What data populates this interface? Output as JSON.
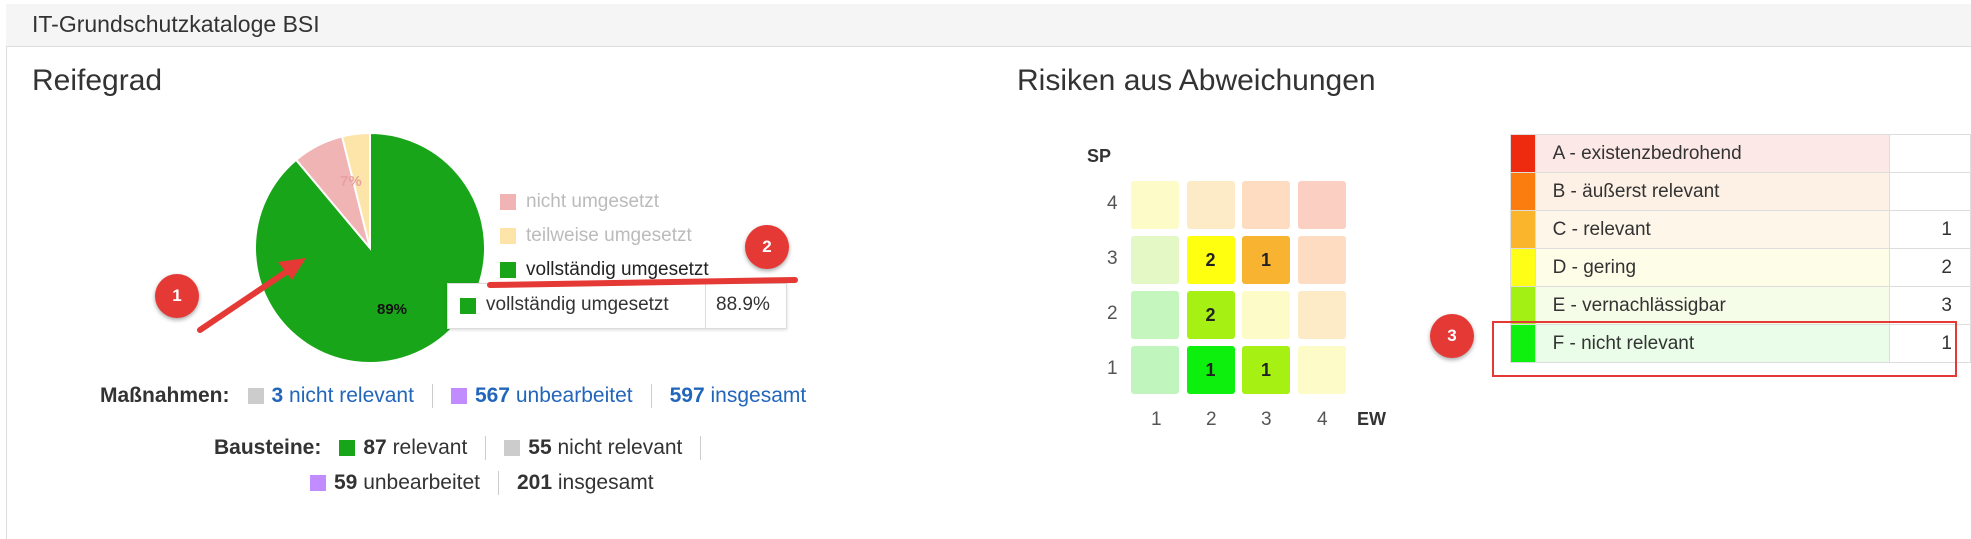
{
  "panel": {
    "title": "IT-Grundschutzkataloge BSI"
  },
  "reifegrad": {
    "title": "Reifegrad",
    "legend": [
      {
        "label": "nicht umgesetzt",
        "color": "#f0b4b4"
      },
      {
        "label": "teilweise umgesetzt",
        "color": "#fde4a8"
      },
      {
        "label": "vollständig umgesetzt",
        "color": "#19a519"
      }
    ],
    "tooltip": {
      "label": "vollständig umgesetzt",
      "value": "88.9%"
    },
    "slice_labels": {
      "nicht": "7%",
      "voll": "89%"
    },
    "massnahmen": {
      "label": "Maßnahmen:",
      "nicht_relevant": {
        "count": "3",
        "text": "nicht relevant"
      },
      "unbearbeitet": {
        "count": "567",
        "text": "unbearbeitet"
      },
      "insgesamt": {
        "count": "597",
        "text": "insgesamt"
      }
    },
    "bausteine": {
      "label": "Bausteine:",
      "relevant": {
        "count": "87",
        "text": "relevant"
      },
      "nicht_relevant": {
        "count": "55",
        "text": "nicht relevant"
      },
      "unbearbeitet": {
        "count": "59",
        "text": "unbearbeitet"
      },
      "insgesamt": {
        "count": "201",
        "text": "insgesamt"
      }
    }
  },
  "chart_data": {
    "type": "pie",
    "categories": [
      "nicht umgesetzt",
      "teilweise umgesetzt",
      "vollständig umgesetzt"
    ],
    "values": [
      7.2,
      3.9,
      88.9
    ],
    "colors": [
      "#f0b4b4",
      "#fde4a8",
      "#19a519"
    ],
    "data_labels": [
      "7%",
      "",
      "89%"
    ]
  },
  "risiken": {
    "title": "Risiken aus Abweichungen",
    "matrix": {
      "y_label": "SP",
      "x_label": "EW",
      "y_ticks": [
        "4",
        "3",
        "2",
        "1"
      ],
      "x_ticks": [
        "1",
        "2",
        "3",
        "4"
      ],
      "rows": [
        [
          {
            "v": "",
            "c": "#fdfbc8"
          },
          {
            "v": "",
            "c": "#fdeac6"
          },
          {
            "v": "",
            "c": "#fddcc2"
          },
          {
            "v": "",
            "c": "#fccfc3"
          }
        ],
        [
          {
            "v": "",
            "c": "#e4f8c6"
          },
          {
            "v": "2",
            "c": "#ffff10"
          },
          {
            "v": "1",
            "c": "#f8b430"
          },
          {
            "v": "",
            "c": "#fddcc2"
          }
        ],
        [
          {
            "v": "",
            "c": "#c4f6be"
          },
          {
            "v": "2",
            "c": "#a6f014"
          },
          {
            "v": "",
            "c": "#fdfbc8"
          },
          {
            "v": "",
            "c": "#fdeac6"
          }
        ],
        [
          {
            "v": "",
            "c": "#c0f6be"
          },
          {
            "v": "1",
            "c": "#0df00d"
          },
          {
            "v": "1",
            "c": "#a6f014"
          },
          {
            "v": "",
            "c": "#fdfbc8"
          }
        ]
      ]
    },
    "levels": [
      {
        "label": "A - existenzbedrohend",
        "count": "",
        "color": "#ee2a0f",
        "bg": "#fce9e7"
      },
      {
        "label": "B - äußerst relevant",
        "count": "",
        "color": "#fb7c0f",
        "bg": "#fdf1e6"
      },
      {
        "label": "C - relevant",
        "count": "1",
        "color": "#fbb52d",
        "bg": "#fdf6e9"
      },
      {
        "label": "D - gering",
        "count": "2",
        "color": "#fefe16",
        "bg": "#fefee8"
      },
      {
        "label": "E - vernachlässigbar",
        "count": "3",
        "color": "#a3f014",
        "bg": "#f5fde8"
      },
      {
        "label": "F - nicht relevant",
        "count": "1",
        "color": "#0ef00e",
        "bg": "#eafde9"
      }
    ]
  },
  "annotations": [
    {
      "label": "1"
    },
    {
      "label": "2"
    },
    {
      "label": "3"
    }
  ]
}
